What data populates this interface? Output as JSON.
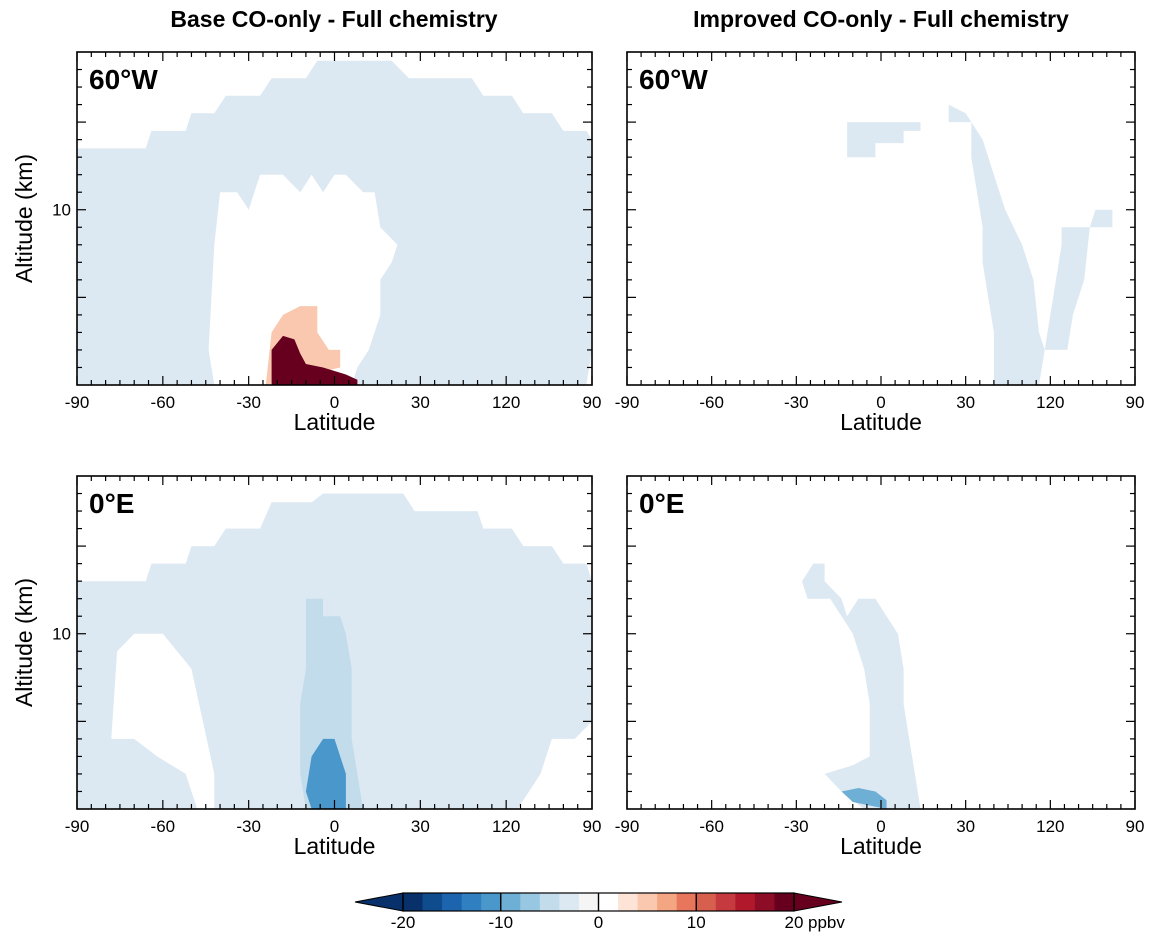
{
  "column_titles": [
    "Base CO-only - Full chemistry",
    "Improved CO-only - Full chemistry"
  ],
  "chart_data": [
    {
      "type": "heatmap",
      "panel_label": "60°W",
      "column": "Base CO-only - Full chemistry",
      "xlabel": "Latitude",
      "ylabel": "Altitude (km)",
      "x_tick_labels": [
        "-90",
        "-60",
        "-30",
        "0",
        "30",
        "120",
        "90"
      ],
      "y_tick_labels": [
        "10"
      ],
      "regions": [
        {
          "value": -2.5,
          "label": "light blue background",
          "outline": [
            [
              -90,
              13.5
            ],
            [
              -66,
              13.5
            ],
            [
              -64,
              14.5
            ],
            [
              -52,
              14.5
            ],
            [
              -50,
              15.5
            ],
            [
              -42,
              15.5
            ],
            [
              -38,
              16.5
            ],
            [
              -26,
              16.5
            ],
            [
              -22,
              17.5
            ],
            [
              -10,
              17.5
            ],
            [
              -6,
              18.5
            ],
            [
              6,
              18.5
            ],
            [
              20,
              18.5
            ],
            [
              26,
              17.5
            ],
            [
              48,
              17.5
            ],
            [
              52,
              16.5
            ],
            [
              62,
              16.5
            ],
            [
              66,
              15.5
            ],
            [
              76,
              15.5
            ],
            [
              80,
              14.5
            ],
            [
              88,
              14.5
            ],
            [
              90,
              14
            ],
            [
              90,
              2
            ],
            [
              88,
              0
            ],
            [
              -90,
              0
            ]
          ]
        },
        {
          "value": 0,
          "label": "white gap",
          "outline": [
            [
              -42,
              8
            ],
            [
              -40,
              11
            ],
            [
              -34,
              11
            ],
            [
              -30,
              10
            ],
            [
              -26,
              12
            ],
            [
              -18,
              12
            ],
            [
              -12,
              11
            ],
            [
              -8,
              12
            ],
            [
              -4,
              11
            ],
            [
              0,
              12
            ],
            [
              4,
              12
            ],
            [
              10,
              11
            ],
            [
              14,
              11
            ],
            [
              16,
              9
            ],
            [
              22,
              8
            ],
            [
              20,
              7
            ],
            [
              16,
              6
            ],
            [
              16,
              4
            ],
            [
              12,
              2
            ],
            [
              8,
              1
            ],
            [
              6,
              0
            ],
            [
              -42,
              0
            ],
            [
              -44,
              2
            ]
          ]
        },
        {
          "value": 4,
          "label": "light orange",
          "outline": [
            [
              -24,
              0
            ],
            [
              -22,
              3
            ],
            [
              -18,
              4
            ],
            [
              -12,
              4.5
            ],
            [
              -6,
              4.5
            ],
            [
              -6,
              3
            ],
            [
              -2,
              2
            ],
            [
              2,
              2
            ],
            [
              2,
              1
            ],
            [
              -24,
              0
            ]
          ]
        },
        {
          "value": 18,
          "label": "dark red maximum",
          "outline": [
            [
              -22,
              0
            ],
            [
              -22,
              2
            ],
            [
              -18,
              2.8
            ],
            [
              -14,
              2.6
            ],
            [
              -12,
              1.8
            ],
            [
              -10,
              1.2
            ],
            [
              -4,
              1.0
            ],
            [
              0,
              0.8
            ],
            [
              4,
              0.6
            ],
            [
              8,
              0.3
            ],
            [
              8,
              0
            ]
          ]
        }
      ]
    },
    {
      "type": "heatmap",
      "panel_label": "60°W",
      "column": "Improved CO-only - Full chemistry",
      "xlabel": "Latitude",
      "ylabel": "",
      "x_tick_labels": [
        "-90",
        "-60",
        "-30",
        "0",
        "30",
        "120",
        "90"
      ],
      "y_tick_labels": [],
      "regions": [
        {
          "value": -2.5,
          "label": "light blue plume",
          "outline": [
            [
              -12,
              14.5
            ],
            [
              -12,
              13
            ],
            [
              -2,
              13
            ],
            [
              -2,
              13.8
            ],
            [
              8,
              13.8
            ],
            [
              8,
              14.5
            ],
            [
              14,
              14.5
            ],
            [
              14,
              16
            ],
            [
              24,
              16
            ],
            [
              24,
              15
            ],
            [
              32,
              15
            ],
            [
              32,
              13
            ],
            [
              34,
              11
            ],
            [
              36,
              9
            ],
            [
              36,
              7
            ],
            [
              38,
              5
            ],
            [
              40,
              3
            ],
            [
              40,
              0
            ],
            [
              56,
              0
            ],
            [
              58,
              2
            ],
            [
              60,
              4
            ],
            [
              62,
              6
            ],
            [
              64,
              8
            ],
            [
              64,
              9
            ],
            [
              74,
              9
            ],
            [
              76,
              10
            ],
            [
              82,
              10
            ],
            [
              82,
              9
            ],
            [
              74,
              9
            ],
            [
              72,
              6
            ],
            [
              68,
              4
            ],
            [
              66,
              2
            ],
            [
              58,
              2
            ],
            [
              56,
              3
            ],
            [
              54,
              6
            ],
            [
              50,
              8
            ],
            [
              44,
              10
            ],
            [
              40,
              12
            ],
            [
              36,
              14
            ],
            [
              30,
              15.5
            ],
            [
              24,
              16
            ],
            [
              14,
              16
            ],
            [
              14,
              15
            ],
            [
              -12,
              15
            ]
          ]
        }
      ]
    },
    {
      "type": "heatmap",
      "panel_label": "0°E",
      "column": "Base CO-only - Full chemistry",
      "xlabel": "Latitude",
      "ylabel": "Altitude (km)",
      "x_tick_labels": [
        "-90",
        "-60",
        "-30",
        "0",
        "30",
        "120",
        "90"
      ],
      "y_tick_labels": [
        "10"
      ],
      "regions": [
        {
          "value": -2.5,
          "label": "light blue background",
          "outline": [
            [
              -90,
              13
            ],
            [
              -66,
              13
            ],
            [
              -64,
              14
            ],
            [
              -52,
              14
            ],
            [
              -50,
              15
            ],
            [
              -42,
              15
            ],
            [
              -38,
              16
            ],
            [
              -26,
              16
            ],
            [
              -22,
              17.5
            ],
            [
              -8,
              17.5
            ],
            [
              -4,
              18
            ],
            [
              24,
              18
            ],
            [
              28,
              17
            ],
            [
              50,
              17
            ],
            [
              52,
              16
            ],
            [
              62,
              16
            ],
            [
              66,
              15
            ],
            [
              76,
              15
            ],
            [
              80,
              14
            ],
            [
              88,
              14
            ],
            [
              90,
              13
            ],
            [
              90,
              5
            ],
            [
              84,
              4
            ],
            [
              76,
              4
            ],
            [
              72,
              2
            ],
            [
              64,
              0
            ],
            [
              -90,
              0
            ]
          ]
        },
        {
          "value": 0,
          "label": "white gap",
          "outline": [
            [
              -78,
              4
            ],
            [
              -76,
              9
            ],
            [
              -70,
              10
            ],
            [
              -60,
              10
            ],
            [
              -50,
              8
            ],
            [
              -46,
              5
            ],
            [
              -42,
              2
            ],
            [
              -42,
              0
            ],
            [
              -48,
              0
            ],
            [
              -52,
              2
            ],
            [
              -62,
              3
            ],
            [
              -70,
              4
            ]
          ]
        },
        {
          "value": -5,
          "label": "blue column",
          "outline": [
            [
              -10,
              12
            ],
            [
              -4,
              12
            ],
            [
              -4,
              11
            ],
            [
              2,
              11
            ],
            [
              4,
              10
            ],
            [
              6,
              8
            ],
            [
              6,
              4
            ],
            [
              8,
              2
            ],
            [
              10,
              0
            ],
            [
              -10,
              0
            ],
            [
              -12,
              2
            ],
            [
              -12,
              6
            ],
            [
              -10,
              8
            ],
            [
              -10,
              10
            ]
          ]
        },
        {
          "value": -12,
          "label": "blue minimum",
          "outline": [
            [
              -8,
              3
            ],
            [
              -4,
              4
            ],
            [
              0,
              4
            ],
            [
              2,
              3
            ],
            [
              4,
              2
            ],
            [
              4,
              0
            ],
            [
              -8,
              0
            ],
            [
              -10,
              1
            ]
          ]
        }
      ]
    },
    {
      "type": "heatmap",
      "panel_label": "0°E",
      "column": "Improved CO-only - Full chemistry",
      "xlabel": "Latitude",
      "ylabel": "",
      "x_tick_labels": [
        "-90",
        "-60",
        "-30",
        "0",
        "30",
        "120",
        "90"
      ],
      "y_tick_labels": [],
      "regions": [
        {
          "value": -2.5,
          "label": "light blue plume",
          "outline": [
            [
              -28,
              13
            ],
            [
              -24,
              14
            ],
            [
              -20,
              14
            ],
            [
              -20,
              13
            ],
            [
              -14,
              12
            ],
            [
              -12,
              11
            ],
            [
              -8,
              12
            ],
            [
              -2,
              12
            ],
            [
              2,
              11
            ],
            [
              6,
              10
            ],
            [
              8,
              8
            ],
            [
              8,
              6
            ],
            [
              10,
              4
            ],
            [
              12,
              2
            ],
            [
              14,
              0
            ],
            [
              -6,
              0
            ],
            [
              -14,
              1
            ],
            [
              -20,
              2
            ],
            [
              -10,
              2.5
            ],
            [
              -4,
              3
            ],
            [
              -4,
              6
            ],
            [
              -6,
              8
            ],
            [
              -10,
              10
            ],
            [
              -14,
              11
            ],
            [
              -18,
              12
            ],
            [
              -26,
              12
            ]
          ]
        },
        {
          "value": -10,
          "label": "blue minimum",
          "outline": [
            [
              -14,
              1
            ],
            [
              -8,
              1.2
            ],
            [
              -2,
              1
            ],
            [
              2,
              0.5
            ],
            [
              2,
              0
            ],
            [
              -10,
              0.4
            ]
          ]
        }
      ]
    }
  ],
  "colorbar": {
    "label_ticks": [
      "-20",
      "-10",
      "0",
      "10",
      "20"
    ],
    "unit": "ppbv",
    "colors": [
      "#08306b",
      "#0e4c8e",
      "#1c64ad",
      "#2f7fc1",
      "#4a97cc",
      "#6eafd6",
      "#98c7e2",
      "#c3dcec",
      "#dde9f2",
      "#f5f5f5",
      "#ffffff",
      "#fde4d6",
      "#f9c8ae",
      "#f4a582",
      "#e8765c",
      "#d6604d",
      "#c53a3e",
      "#b2182b",
      "#8c0d25",
      "#67001f"
    ],
    "under_color": "#08306b",
    "over_color": "#67001f"
  }
}
